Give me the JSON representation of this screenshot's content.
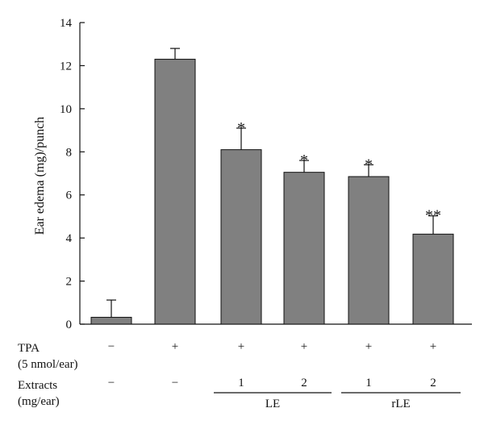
{
  "chart_data": {
    "type": "bar",
    "ylabel": "Ear edema (mg)/punch",
    "ylim": [
      0,
      14
    ],
    "yticks": [
      0,
      2,
      4,
      6,
      8,
      10,
      12,
      14
    ],
    "grid": false,
    "values": [
      0.32,
      12.3,
      8.1,
      7.05,
      6.85,
      4.18
    ],
    "errors": [
      0.8,
      0.5,
      1.0,
      0.55,
      0.55,
      0.85
    ],
    "significance": [
      "",
      "",
      "*",
      "*",
      "*",
      "**"
    ],
    "bar_color": "#808080",
    "table": {
      "tpa_label": [
        "TPA",
        "(5 nmol/ear)"
      ],
      "tpa_values": [
        "−",
        "+",
        "+",
        "+",
        "+",
        "+"
      ],
      "extracts_label": [
        "Extracts",
        "(mg/ear)"
      ],
      "extracts_values": [
        "−",
        "−",
        "1",
        "2",
        "1",
        "2"
      ],
      "groups": [
        {
          "label": "LE",
          "bars": [
            2,
            3
          ]
        },
        {
          "label": "rLE",
          "bars": [
            4,
            5
          ]
        }
      ]
    }
  }
}
